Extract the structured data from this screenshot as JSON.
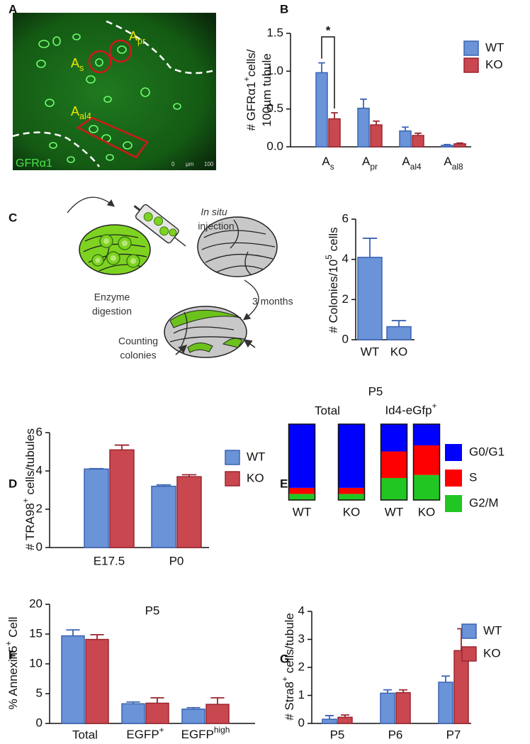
{
  "panel_labels": [
    "A",
    "B",
    "C",
    "D",
    "E",
    "F",
    "G"
  ],
  "image_a": {
    "labels": [
      [
        "A",
        {
          "sub": "pr"
        }
      ],
      [
        "A",
        {
          "sub": "s"
        }
      ],
      [
        "A",
        {
          "sub": "al4"
        }
      ]
    ],
    "stain": "GFRα1",
    "scale_bar": [
      "0",
      "µm",
      "100"
    ]
  },
  "diagram_c": {
    "steps": [
      [
        "Enzyme",
        "digestion"
      ],
      [
        "In situ",
        "injection"
      ],
      [
        "3 months"
      ],
      [
        "Counting",
        "colonies"
      ]
    ]
  },
  "chart_data": [
    {
      "type": "bar",
      "categories": [
        [
          "A",
          {
            "sub": "s"
          }
        ],
        [
          "A",
          {
            "sub": "pr"
          }
        ],
        [
          "A",
          {
            "sub": "al4"
          }
        ],
        [
          "A",
          {
            "sub": "al8"
          }
        ]
      ],
      "y_label": [
        [
          "# GFRα1",
          {
            "sup": "+"
          },
          "cells/"
        ],
        [
          "100µm tubule"
        ]
      ],
      "series": [
        {
          "name": "WT",
          "color": "#6a93d8",
          "edge": "#3b64b3",
          "values": [
            0.98,
            0.51,
            0.21,
            0.02
          ],
          "errors": [
            0.13,
            0.12,
            0.05,
            0.01
          ]
        },
        {
          "name": "KO",
          "color": "#c9474f",
          "edge": "#9a2630",
          "values": [
            0.37,
            0.29,
            0.15,
            0.04
          ],
          "errors": [
            0.08,
            0.05,
            0.03,
            0.01
          ]
        }
      ],
      "ylim": [
        0,
        1.5
      ],
      "yticks": [
        {
          "value": 0,
          "label": "0.0"
        },
        0.5,
        {
          "value": 1,
          "label": "1.0"
        },
        1.5
      ],
      "annotation": "*",
      "legend": true
    },
    {
      "type": "bar",
      "categories": [
        "WT",
        "KO"
      ],
      "y_label": [
        [
          "# Colonies/10",
          {
            "sup": "5"
          },
          " cells"
        ]
      ],
      "values": [
        4.1,
        0.65
      ],
      "errors": [
        0.95,
        0.3
      ],
      "colors": [
        "#6a93d8",
        "#6a93d8"
      ],
      "edges": [
        "#3b64b3",
        "#3b64b3"
      ],
      "ylim": [
        0,
        6
      ],
      "yticks": [
        0,
        2,
        4,
        6
      ]
    },
    {
      "type": "bar",
      "categories": [
        "E17.5",
        "P0"
      ],
      "y_label": [
        [
          "# TRA98",
          {
            "sup": "+"
          },
          " cells/tubules"
        ]
      ],
      "series": [
        {
          "name": "WT",
          "color": "#6a93d8",
          "edge": "#3b64b3",
          "values": [
            4.1,
            3.2
          ],
          "errors": [
            0.02,
            0.07
          ]
        },
        {
          "name": "KO",
          "color": "#c9474f",
          "edge": "#9a2630",
          "values": [
            5.1,
            3.7
          ],
          "errors": [
            0.25,
            0.1
          ]
        }
      ],
      "ylim": [
        0,
        6
      ],
      "yticks": [
        0,
        2,
        4,
        6
      ],
      "legend": true
    },
    {
      "type": "stacked_bar",
      "title": "P5",
      "groups": [
        "Total",
        [
          "Id4-eGfp",
          {
            "sup": "+"
          }
        ]
      ],
      "categories": [
        "WT",
        "KO",
        "WT",
        "KO"
      ],
      "series": [
        {
          "name": "G0/G1",
          "color": "#0000ff",
          "values": [
            84,
            84,
            36,
            28
          ]
        },
        {
          "name": "S",
          "color": "#ff0000",
          "values": [
            8,
            8,
            35,
            39
          ]
        },
        {
          "name": "G2/M",
          "color": "#22c622",
          "values": [
            8,
            8,
            29,
            33
          ]
        }
      ],
      "ylim": [
        0,
        100
      ]
    },
    {
      "type": "bar",
      "title": "P5",
      "categories": [
        "Total",
        [
          "EGFP",
          {
            "sup": "+"
          }
        ],
        [
          "EGFP",
          {
            "sup": "high"
          }
        ]
      ],
      "y_label": [
        [
          "% Annexin5",
          {
            "sup": "+"
          },
          " Cell"
        ]
      ],
      "series": [
        {
          "color": "#6a93d8",
          "edge": "#3b64b3",
          "values": [
            14.7,
            3.3,
            2.4
          ],
          "errors": [
            1.0,
            0.3,
            0.25
          ]
        },
        {
          "color": "#c9474f",
          "edge": "#9a2630",
          "values": [
            14.1,
            3.4,
            3.2
          ],
          "errors": [
            0.8,
            0.9,
            1.1
          ]
        }
      ],
      "ylim": [
        0,
        20
      ],
      "yticks": [
        0,
        5,
        10,
        15,
        20
      ],
      "legend": false
    },
    {
      "type": "bar",
      "categories": [
        "P5",
        "P6",
        "P7"
      ],
      "y_label": [
        [
          "# Stra8",
          {
            "sup": "+"
          },
          " cells/tubule"
        ]
      ],
      "series": [
        {
          "name": "WT",
          "color": "#6a93d8",
          "edge": "#3b64b3",
          "values": [
            0.15,
            1.08,
            1.47
          ],
          "errors": [
            0.13,
            0.12,
            0.22
          ]
        },
        {
          "name": "KO",
          "color": "#c9474f",
          "edge": "#9a2630",
          "values": [
            0.22,
            1.1,
            2.6
          ],
          "errors": [
            0.08,
            0.1,
            0.78
          ]
        }
      ],
      "ylim": [
        0,
        4
      ],
      "yticks": [
        0,
        1,
        2,
        3,
        4
      ],
      "legend": true
    }
  ]
}
